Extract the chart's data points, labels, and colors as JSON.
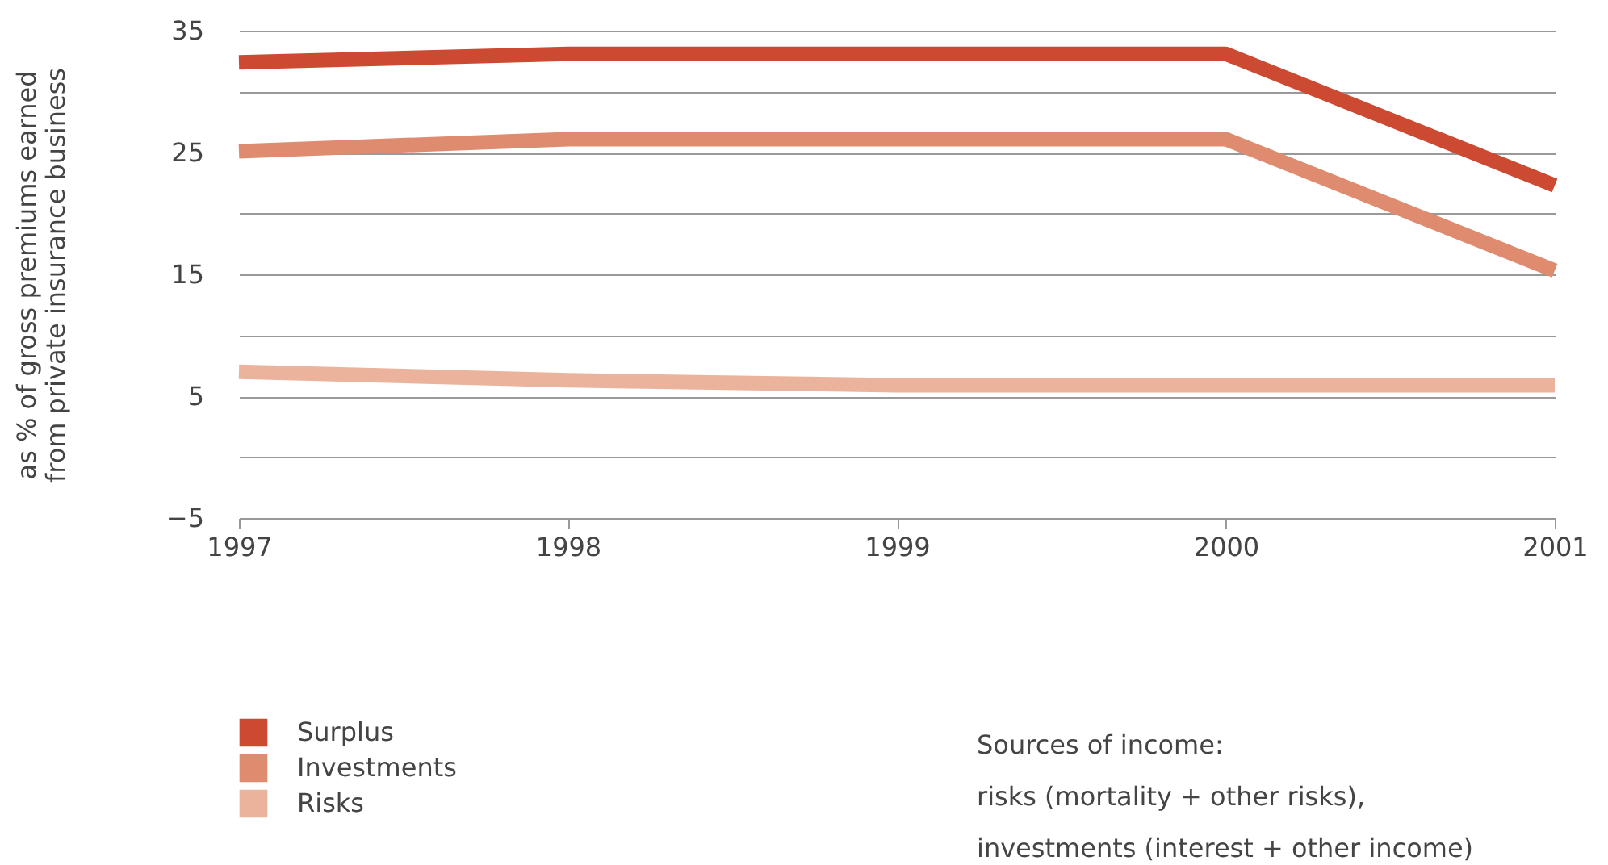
{
  "chart_data": {
    "type": "line",
    "ylabel": "as % of gross premiums earned\nfrom private insurance business",
    "categories": [
      "1997",
      "1998",
      "1999",
      "2000",
      "2001"
    ],
    "series": [
      {
        "name": "Surplus",
        "color": "#cc4a32",
        "values": [
          32.4,
          33.1,
          33.1,
          33.1,
          22.3
        ]
      },
      {
        "name": "Investments",
        "color": "#df8b6f",
        "values": [
          25.1,
          26.1,
          26.1,
          26.1,
          15.3
        ]
      },
      {
        "name": "Risks",
        "color": "#ebb39c",
        "values": [
          7,
          6.3,
          5.9,
          5.9,
          5.9
        ]
      }
    ],
    "ylim": [
      -5,
      35
    ],
    "yticks": [
      -5,
      {
        "value": 0,
        "label": null
      },
      5,
      {
        "value": 10,
        "label": null
      },
      15,
      {
        "value": 20,
        "label": null
      },
      25,
      {
        "value": 30,
        "label": null
      },
      35
    ],
    "grid": "y",
    "legend": "bottom left",
    "marker": "none",
    "line_style": "solid",
    "annotations": [
      "Sources of income:",
      "risks (mortality + other risks),",
      "investments (interest + other income)"
    ]
  }
}
